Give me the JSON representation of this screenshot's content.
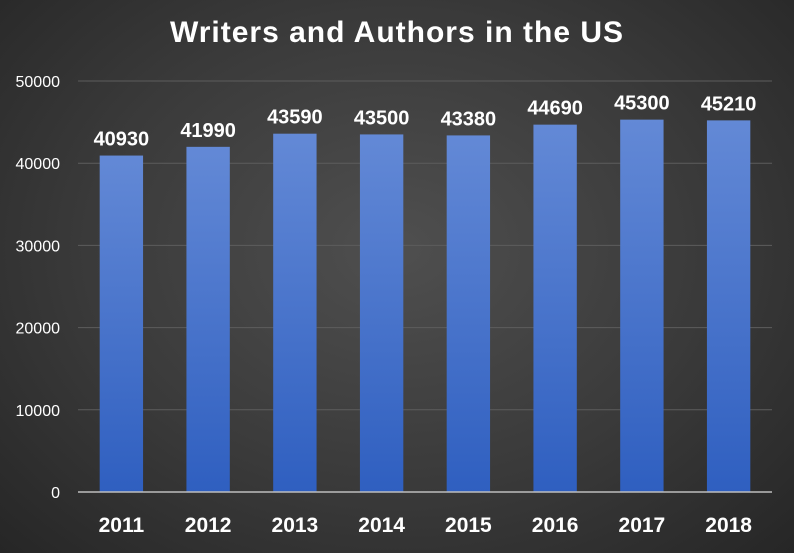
{
  "chart_data": {
    "type": "bar",
    "title": "Writers and Authors in the US",
    "categories": [
      "2011",
      "2012",
      "2013",
      "2014",
      "2015",
      "2016",
      "2017",
      "2018"
    ],
    "values": [
      40930,
      41990,
      43590,
      43500,
      43380,
      44690,
      45300,
      45210
    ],
    "ylim": [
      0,
      50000
    ],
    "yticks": [
      0,
      10000,
      20000,
      30000,
      40000,
      50000
    ],
    "xlabel": "",
    "ylabel": "",
    "grid": true,
    "legend": "none",
    "bar_color_top": "#6389d6",
    "bar_color_bottom": "#2f5fc0",
    "gridline_color": "#5d5d5d"
  }
}
